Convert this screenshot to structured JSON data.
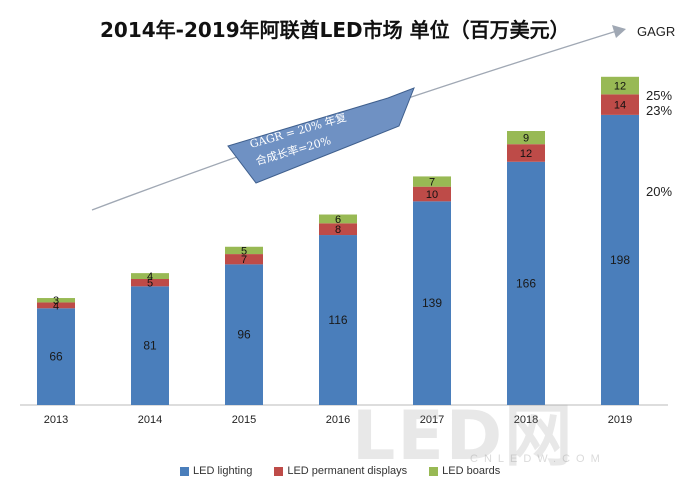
{
  "chart_data": {
    "type": "bar",
    "stacked": true,
    "title": "2014年-2019年阿联酋LED市场 单位（百万美元）",
    "categories": [
      "2013",
      "2014",
      "2015",
      "2016",
      "2017",
      "2018",
      "2019"
    ],
    "series": [
      {
        "name": "LED lighting",
        "color": "#4a7ebb",
        "values": [
          66,
          81,
          96,
          116,
          139,
          166,
          198
        ]
      },
      {
        "name": "LED permanent displays",
        "color": "#be4b48",
        "values": [
          4,
          5,
          7,
          8,
          10,
          12,
          14
        ]
      },
      {
        "name": "LED boards",
        "color": "#98b954",
        "values": [
          3,
          4,
          5,
          6,
          7,
          9,
          12
        ]
      }
    ],
    "ylim": [
      0,
      230
    ],
    "legend_position": "bottom",
    "grid": false,
    "gagr_header": "GAGR",
    "gagr_values": [
      "25%",
      "23%",
      "20%"
    ],
    "arrow_annotation": [
      "GAGR = 20%  年复",
      "合成长率=20%"
    ]
  },
  "watermark": {
    "main": "LED网",
    "sub": "CNLEDW.COM"
  }
}
